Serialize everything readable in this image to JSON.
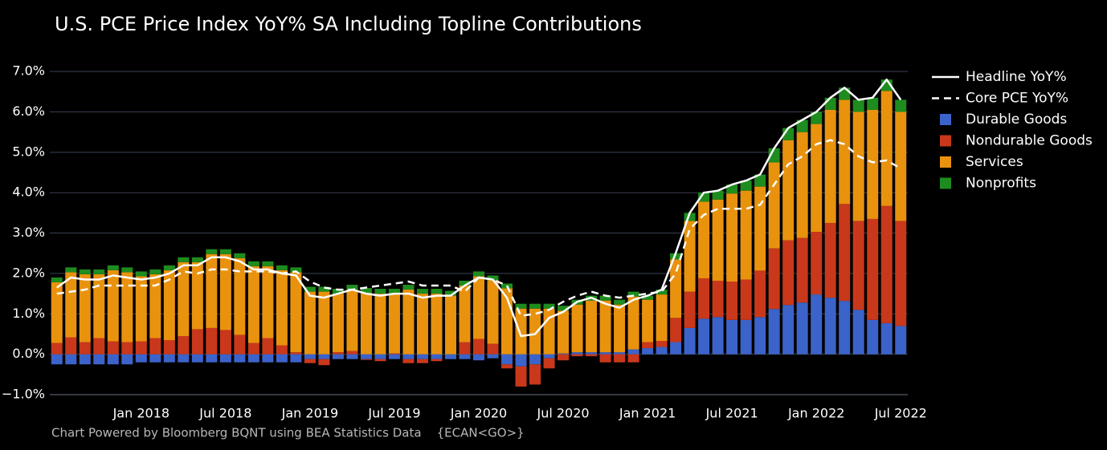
{
  "chart_data": {
    "type": "bar",
    "stacked": true,
    "title": "U.S. PCE Price Index YoY% SA Including Topline Contributions",
    "source": "Chart Powered by Bloomberg BQNT using BEA Statistics Data    {ECAN<GO>}",
    "categories": [
      null,
      null,
      null,
      null,
      null,
      null,
      "Jan 2018",
      null,
      null,
      null,
      null,
      null,
      "Jul 2018",
      null,
      null,
      null,
      null,
      null,
      "Jan 2019",
      null,
      null,
      null,
      null,
      null,
      "Jul 2019",
      null,
      null,
      null,
      null,
      null,
      "Jan 2020",
      null,
      null,
      null,
      null,
      null,
      "Jul 2020",
      null,
      null,
      null,
      null,
      null,
      "Jan 2021",
      null,
      null,
      null,
      null,
      null,
      "Jul 2021",
      null,
      null,
      null,
      null,
      null,
      "Jan 2022",
      null,
      null,
      null,
      null,
      null,
      "Jul 2022"
    ],
    "series": [
      {
        "name": "Headline YoY%",
        "type": "line",
        "color": "#ffffff",
        "dash": false,
        "values": [
          1.65,
          1.9,
          1.85,
          1.85,
          1.95,
          1.9,
          1.85,
          1.9,
          2.0,
          2.2,
          2.2,
          2.4,
          2.4,
          2.3,
          2.1,
          2.1,
          2.0,
          1.95,
          1.45,
          1.4,
          1.5,
          1.6,
          1.5,
          1.45,
          1.5,
          1.5,
          1.4,
          1.45,
          1.45,
          1.7,
          1.9,
          1.85,
          1.4,
          0.45,
          0.5,
          0.9,
          1.05,
          1.3,
          1.4,
          1.25,
          1.15,
          1.35,
          1.45,
          1.6,
          2.5,
          3.5,
          4.0,
          4.05,
          4.2,
          4.3,
          4.45,
          5.1,
          5.6,
          5.8,
          6.0,
          6.35,
          6.6,
          6.3,
          6.35,
          6.8,
          6.3
        ]
      },
      {
        "name": "Core PCE YoY%",
        "type": "line",
        "color": "#ffffff",
        "dash": true,
        "values": [
          1.5,
          1.55,
          1.6,
          1.7,
          1.7,
          1.7,
          1.7,
          1.7,
          1.85,
          2.05,
          2.0,
          2.1,
          2.1,
          2.05,
          2.05,
          2.05,
          2.0,
          2.05,
          1.8,
          1.65,
          1.6,
          1.6,
          1.65,
          1.7,
          1.75,
          1.8,
          1.7,
          1.7,
          1.7,
          1.55,
          1.9,
          1.85,
          1.7,
          0.95,
          1.0,
          1.1,
          1.3,
          1.45,
          1.55,
          1.45,
          1.4,
          1.45,
          1.5,
          1.55,
          2.0,
          3.1,
          3.45,
          3.6,
          3.6,
          3.6,
          3.7,
          4.2,
          4.7,
          4.9,
          5.2,
          5.3,
          5.2,
          4.9,
          4.75,
          4.8,
          4.6
        ]
      },
      {
        "name": "Durable Goods",
        "type": "bar",
        "color": "#3b63c9",
        "values": [
          -0.25,
          -0.25,
          -0.25,
          -0.25,
          -0.25,
          -0.25,
          -0.2,
          -0.2,
          -0.2,
          -0.2,
          -0.2,
          -0.2,
          -0.2,
          -0.2,
          -0.2,
          -0.2,
          -0.2,
          -0.2,
          -0.12,
          -0.12,
          -0.12,
          -0.12,
          -0.12,
          -0.12,
          -0.12,
          -0.12,
          -0.12,
          -0.12,
          -0.12,
          -0.12,
          -0.15,
          -0.1,
          -0.25,
          -0.3,
          -0.25,
          -0.1,
          0.02,
          0.05,
          0.05,
          0.05,
          0.05,
          0.12,
          0.15,
          0.18,
          0.3,
          0.65,
          0.88,
          0.92,
          0.85,
          0.85,
          0.92,
          1.12,
          1.22,
          1.28,
          1.48,
          1.4,
          1.32,
          1.1,
          0.85,
          0.77,
          0.7
        ]
      },
      {
        "name": "Nondurable Goods",
        "type": "bar",
        "color": "#c9381b",
        "values": [
          0.28,
          0.42,
          0.3,
          0.4,
          0.32,
          0.3,
          0.32,
          0.4,
          0.35,
          0.45,
          0.62,
          0.65,
          0.6,
          0.48,
          0.28,
          0.4,
          0.22,
          0.05,
          -0.1,
          -0.15,
          0.05,
          0.08,
          -0.02,
          -0.05,
          0.02,
          -0.1,
          -0.1,
          -0.05,
          0,
          0.3,
          0.38,
          0.26,
          -0.1,
          -0.5,
          -0.5,
          -0.25,
          -0.15,
          -0.05,
          -0.05,
          -0.2,
          -0.2,
          -0.2,
          0.15,
          0.15,
          0.6,
          0.9,
          1.0,
          0.9,
          0.95,
          1.0,
          1.15,
          1.5,
          1.6,
          1.6,
          1.55,
          1.85,
          2.4,
          2.2,
          2.5,
          2.9,
          2.6
        ]
      },
      {
        "name": "Services",
        "type": "bar",
        "color": "#e8920e",
        "values": [
          1.5,
          1.61,
          1.68,
          1.58,
          1.76,
          1.73,
          1.61,
          1.58,
          1.73,
          1.83,
          1.66,
          1.83,
          1.88,
          1.9,
          1.9,
          1.78,
          1.86,
          1.98,
          1.55,
          1.55,
          1.45,
          1.52,
          1.52,
          1.5,
          1.48,
          1.6,
          1.5,
          1.5,
          1.45,
          1.4,
          1.55,
          1.57,
          1.63,
          1.13,
          1.13,
          1.13,
          1.06,
          1.18,
          1.28,
          1.28,
          1.18,
          1.31,
          1.05,
          1.15,
          1.45,
          1.75,
          1.9,
          2.01,
          2.18,
          2.2,
          2.08,
          2.13,
          2.48,
          2.62,
          2.67,
          2.8,
          2.58,
          2.7,
          2.7,
          2.85,
          2.7
        ]
      },
      {
        "name": "Nonprofits",
        "type": "bar",
        "color": "#1e8c1e",
        "values": [
          0.12,
          0.12,
          0.12,
          0.12,
          0.12,
          0.12,
          0.12,
          0.12,
          0.12,
          0.12,
          0.12,
          0.12,
          0.12,
          0.12,
          0.12,
          0.12,
          0.12,
          0.12,
          0.12,
          0.12,
          0.12,
          0.12,
          0.12,
          0.12,
          0.12,
          0.12,
          0.12,
          0.12,
          0.12,
          0.12,
          0.12,
          0.12,
          0.12,
          0.12,
          0.12,
          0.12,
          0.12,
          0.12,
          0.12,
          0.12,
          0.12,
          0.12,
          0.1,
          0.12,
          0.15,
          0.2,
          0.22,
          0.22,
          0.22,
          0.25,
          0.3,
          0.35,
          0.3,
          0.3,
          0.3,
          0.3,
          0.3,
          0.3,
          0.3,
          0.28,
          0.3
        ]
      }
    ],
    "ylim": [
      -1.0,
      7.3
    ],
    "yticks": [
      {
        "value": -1,
        "label": "−1.0%"
      },
      {
        "value": 0,
        "label": "0.0%"
      },
      {
        "value": 1,
        "label": "1.0%"
      },
      {
        "value": 2,
        "label": "2.0%"
      },
      {
        "value": 3,
        "label": "3.0%"
      },
      {
        "value": 4,
        "label": "4.0%"
      },
      {
        "value": 5,
        "label": "5.0%"
      },
      {
        "value": 6,
        "label": "6.0%"
      },
      {
        "value": 7,
        "label": "7.0%"
      }
    ],
    "grid": true,
    "legend": "right"
  }
}
